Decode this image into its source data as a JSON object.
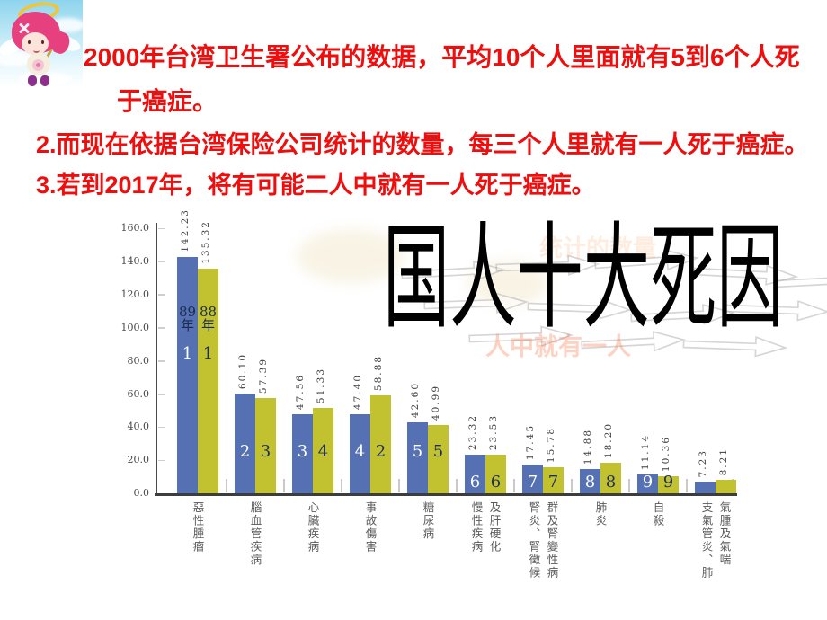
{
  "slide_text": {
    "line1": "2000年台湾卫生署公布的数据，平均10个人里面就有5到6个人死",
    "line2": "于癌症。",
    "line3": "2.而现在依据台湾保险公司统计的数量，每三个人里就有一人死于癌症。",
    "line4": "3.若到2017年，将有可能二人中就有一人死于癌症。",
    "text_color": "#ee0e0e"
  },
  "mascot": {
    "icon": "angel-girl-mascot"
  },
  "ghost_text": {
    "fragment1": "统计的数量",
    "fragment2": "人中就有一人"
  },
  "chart_data": {
    "type": "bar",
    "title": "国人十大死因",
    "ylim": [
      0,
      160
    ],
    "ytick_labels": [
      "160.0",
      "140.0",
      "120.0",
      "100.0",
      "80.0",
      "60.0",
      "40.0",
      "20.0",
      "0.0"
    ],
    "legend_position": "year labels on first bar pair",
    "grid": false,
    "series": [
      {
        "name": "89年",
        "color": "#5571b3",
        "rank_text_color": "#ffffff",
        "values": [
          "142.23",
          "60.10",
          "47.56",
          "47.40",
          "42.60",
          "23.32",
          "17.45",
          "14.88",
          "11.14",
          "7.23"
        ],
        "ranks": [
          "1",
          "2",
          "3",
          "4",
          "5",
          "6",
          "7",
          "8",
          "9",
          ""
        ]
      },
      {
        "name": "88年",
        "color": "#c2c230",
        "rank_text_color": "#1d2e5e",
        "values": [
          "135.32",
          "57.39",
          "51.33",
          "58.88",
          "40.99",
          "23.53",
          "15.78",
          "18.20",
          "10.36",
          "8.21"
        ],
        "ranks": [
          "1",
          "3",
          "4",
          "2",
          "5",
          "6",
          "7",
          "8",
          "9",
          ""
        ]
      }
    ],
    "categories": [
      [
        "惡性腫瘤"
      ],
      [
        "腦血管疾病"
      ],
      [
        "心臟疾病"
      ],
      [
        "事故傷害"
      ],
      [
        "糖尿病"
      ],
      [
        "慢性疾病",
        "及肝硬化"
      ],
      [
        "腎炎、腎徵候",
        "群及腎變性病"
      ],
      [
        "肺炎"
      ],
      [
        "自殺"
      ],
      [
        "支氣管炎、肺",
        "氣腫及氣喘"
      ]
    ]
  }
}
